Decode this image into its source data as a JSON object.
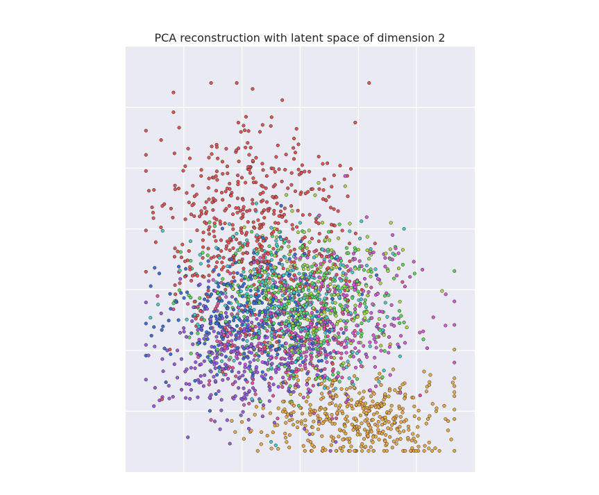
{
  "chart_data": {
    "type": "scatter",
    "title": "PCA reconstruction with latent space of dimension 2",
    "xlabel": "",
    "ylabel": "",
    "xlim": [
      0,
      6
    ],
    "ylim": [
      0,
      7
    ],
    "grid": true,
    "tick_labels_visible": false,
    "background_color": "#eaeaf2",
    "grid_color": "#ffffff",
    "marker_edge_color": "#222222",
    "series": [
      {
        "color": "#e05555",
        "centroid": [
          2.2,
          3.9
        ],
        "spread": [
          0.8,
          0.9
        ],
        "count": 520
      },
      {
        "color": "#e8a94a",
        "centroid": [
          4.0,
          0.9
        ],
        "spread": [
          0.75,
          0.38
        ],
        "count": 430
      },
      {
        "color": "#9a5ce0",
        "centroid": [
          2.0,
          1.9
        ],
        "spread": [
          0.75,
          0.55
        ],
        "count": 300
      },
      {
        "color": "#3e6fd8",
        "centroid": [
          2.2,
          2.6
        ],
        "spread": [
          0.75,
          0.6
        ],
        "count": 340
      },
      {
        "color": "#4cc9c9",
        "centroid": [
          2.8,
          2.9
        ],
        "spread": [
          0.8,
          0.6
        ],
        "count": 300
      },
      {
        "color": "#5cd65c",
        "centroid": [
          3.0,
          2.7
        ],
        "spread": [
          0.85,
          0.6
        ],
        "count": 330
      },
      {
        "color": "#a8d84a",
        "centroid": [
          3.3,
          3.0
        ],
        "spread": [
          0.7,
          0.6
        ],
        "count": 200
      },
      {
        "color": "#d65cd6",
        "centroid": [
          3.5,
          2.6
        ],
        "spread": [
          0.9,
          0.6
        ],
        "count": 260
      },
      {
        "color": "#e0559b",
        "centroid": [
          2.7,
          2.2
        ],
        "spread": [
          0.7,
          0.5
        ],
        "count": 200
      }
    ]
  }
}
